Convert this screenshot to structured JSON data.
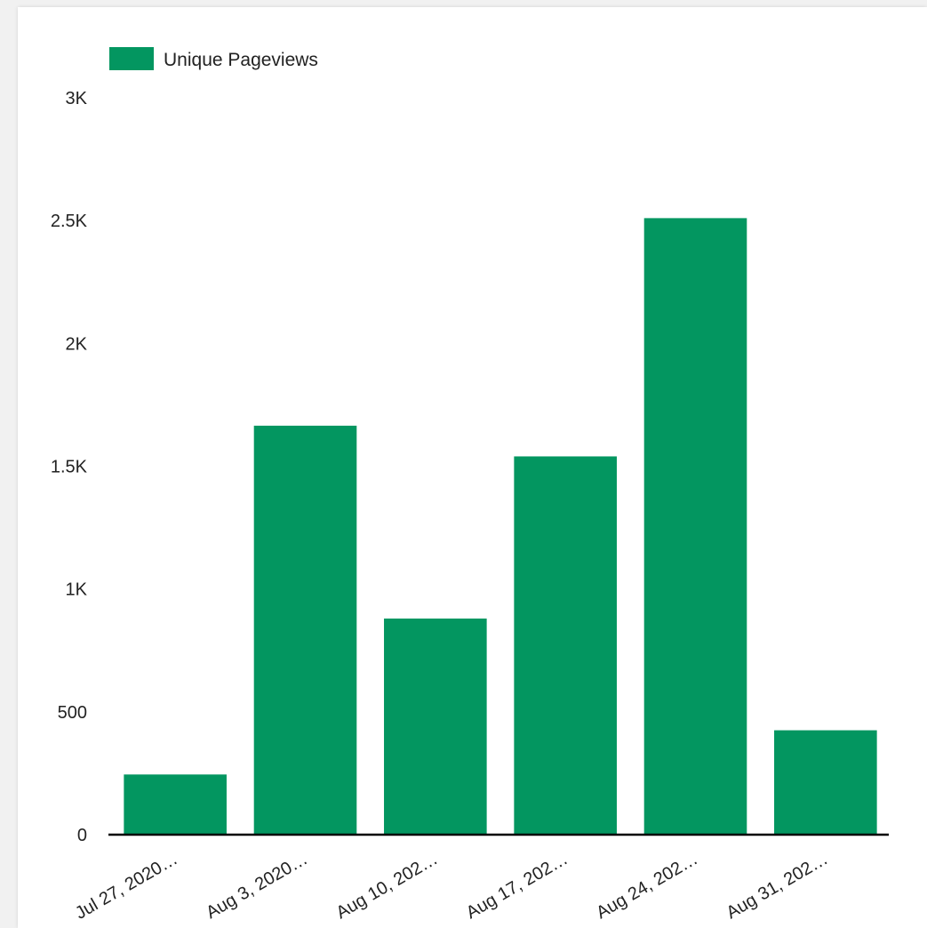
{
  "chart_data": {
    "type": "bar",
    "title": "",
    "xlabel": "",
    "ylabel": "",
    "categories": [
      "Jul 27, 2020…",
      "Aug 3, 2020…",
      "Aug 10, 202…",
      "Aug 17, 202…",
      "Aug 24, 202…",
      "Aug 31, 202…"
    ],
    "series": [
      {
        "name": "Unique Pageviews",
        "values": [
          245,
          1665,
          880,
          1540,
          2510,
          425
        ],
        "color": "#039660"
      }
    ],
    "ylim": [
      0,
      3000
    ],
    "y_ticks": [
      0,
      500,
      1000,
      1500,
      2000,
      2500,
      3000
    ],
    "y_tick_labels": [
      "0",
      "500",
      "1K",
      "1.5K",
      "2K",
      "2.5K",
      "3K"
    ],
    "grid": false,
    "legend": "top-left"
  }
}
